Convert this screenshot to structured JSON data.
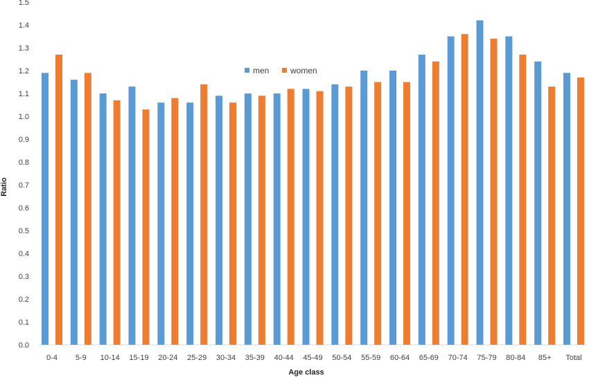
{
  "chart_data": {
    "type": "bar",
    "xlabel": "Age class",
    "ylabel": "Ratio",
    "ylim": [
      0,
      1.5
    ],
    "ytick_step": 0.1,
    "grid": false,
    "legend_position": "top-center",
    "categories": [
      "0-4",
      "5-9",
      "10-14",
      "15-19",
      "20-24",
      "25-29",
      "30-34",
      "35-39",
      "40-44",
      "45-49",
      "50-54",
      "55-59",
      "60-64",
      "65-69",
      "70-74",
      "75-79",
      "80-84",
      "85+",
      "Total"
    ],
    "series": [
      {
        "name": "men",
        "color": "#5B9BD5",
        "values": [
          1.19,
          1.16,
          1.1,
          1.13,
          1.06,
          1.06,
          1.09,
          1.1,
          1.1,
          1.12,
          1.14,
          1.2,
          1.2,
          1.27,
          1.35,
          1.42,
          1.35,
          1.24,
          1.19
        ]
      },
      {
        "name": "women",
        "color": "#ED7D31",
        "values": [
          1.27,
          1.19,
          1.07,
          1.03,
          1.08,
          1.14,
          1.06,
          1.09,
          1.12,
          1.11,
          1.13,
          1.15,
          1.15,
          1.24,
          1.36,
          1.34,
          1.27,
          1.13,
          1.17
        ]
      }
    ]
  }
}
